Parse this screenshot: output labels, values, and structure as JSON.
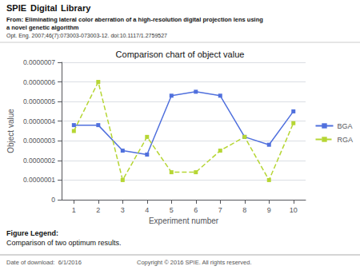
{
  "chart_data": {
    "type": "line",
    "title": "Comparison chart of object value",
    "xlabel": "Experiment number",
    "ylabel": "Object value",
    "x": [
      1,
      2,
      3,
      4,
      5,
      6,
      7,
      8,
      9,
      10
    ],
    "series": [
      {
        "name": "BGA",
        "values": [
          3.8e-07,
          3.8e-07,
          2.5e-07,
          2.3e-07,
          5.3e-07,
          5.5e-07,
          5.3e-07,
          3.2e-07,
          2.8e-07,
          4.5e-07
        ],
        "marker": "square",
        "line_style": "solid"
      },
      {
        "name": "RGA",
        "values": [
          3.5e-07,
          6e-07,
          1e-07,
          3.2e-07,
          1.4e-07,
          1.4e-07,
          2.5e-07,
          3.2e-07,
          1e-07,
          3.9e-07
        ],
        "marker": "square",
        "line_style": "dashed"
      }
    ],
    "xlim": [
      0.5,
      10.5
    ],
    "xticks": [
      1,
      2,
      3,
      4,
      5,
      6,
      7,
      8,
      9,
      10
    ],
    "ylim": [
      0,
      7e-07
    ],
    "yticks": [
      0,
      {
        "value": 1e-07,
        "label": "0.0000001"
      },
      {
        "value": 2e-07,
        "label": "0.0000002"
      },
      {
        "value": 3e-07,
        "label": "0.0000003"
      },
      {
        "value": 4e-07,
        "label": "0.0000004"
      },
      {
        "value": 5e-07,
        "label": "0.0000005"
      },
      {
        "value": 6e-07,
        "label": "0.0000006"
      },
      {
        "value": 7e-07,
        "label": "0.0000007"
      }
    ],
    "grid": true,
    "legend": "right",
    "annotations": [
      "SPIE",
      "Digital",
      "Library",
      "From: Eliminating lateral color aberration of a high-resolution digital projection lens using",
      "a novel genetic algorithm",
      "Opt. Eng. 2007;46(7):073003-073003-12. doi:10.1117/1.2759527",
      "Figure Legend:",
      "Comparison of two optimum results.",
      "Date of download:  6/1/2016",
      "Copyright © 2016 SPIE. All rights reserved."
    ]
  }
}
